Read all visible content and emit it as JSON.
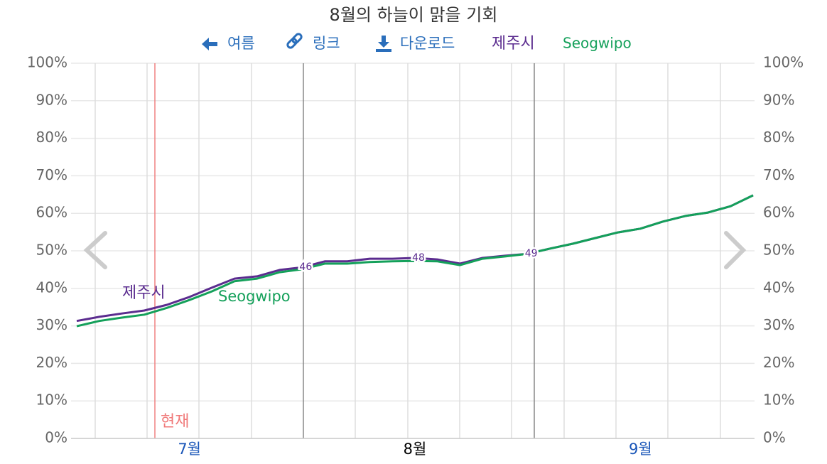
{
  "toolbar": [
    "여름",
    "링크",
    "다운로드"
  ],
  "chart_data": {
    "type": "line",
    "title": "8월의 하늘이 맑을 기회",
    "current_label": "현재",
    "categories": [
      null,
      null,
      null,
      null,
      null,
      "7월",
      null,
      null,
      null,
      null,
      null,
      null,
      null,
      null,
      null,
      "8월",
      null,
      null,
      null,
      null,
      null,
      null,
      null,
      null,
      null,
      "9월",
      null,
      null,
      null,
      null,
      null
    ],
    "series": [
      {
        "name": "제주시",
        "color": "#5b2c8f",
        "values": [
          31.3,
          32.4,
          33.3,
          34.1,
          35.6,
          37.7,
          40.2,
          42.6,
          43.2,
          44.9,
          45.6,
          47.2,
          47.2,
          47.9,
          47.9,
          48.1,
          47.7,
          46.6,
          48.1,
          48.7,
          49.2,
          50.6,
          51.9,
          53.4,
          54.9,
          55.9,
          57.8,
          59.3,
          60.2,
          61.9,
          64.8
        ],
        "value_labels": [
          null,
          null,
          null,
          null,
          null,
          null,
          null,
          null,
          null,
          null,
          "46",
          null,
          null,
          null,
          null,
          "48",
          null,
          null,
          null,
          null,
          "49",
          null,
          null,
          null,
          null,
          null,
          null,
          null,
          null,
          null,
          null
        ]
      },
      {
        "name": "Seogwipo",
        "color": "#14a05a",
        "values": [
          29.9,
          31.3,
          32.2,
          33.0,
          34.8,
          36.9,
          39.2,
          41.9,
          42.6,
          44.3,
          45.1,
          46.6,
          46.6,
          47.0,
          47.2,
          47.3,
          47.2,
          46.2,
          47.9,
          48.5,
          49.2,
          50.6,
          51.9,
          53.4,
          54.9,
          55.9,
          57.8,
          59.3,
          60.2,
          61.9,
          64.8
        ]
      }
    ],
    "ylim": [
      0,
      100
    ],
    "yticks": [
      {
        "value": 0,
        "label": "0%"
      },
      {
        "value": 10,
        "label": "10%"
      },
      {
        "value": 20,
        "label": "20%"
      },
      {
        "value": 30,
        "label": "30%"
      },
      {
        "value": 40,
        "label": "40%"
      },
      {
        "value": 50,
        "label": "50%"
      },
      {
        "value": 60,
        "label": "60%"
      },
      {
        "value": 70,
        "label": "70%"
      },
      {
        "value": 80,
        "label": "80%"
      },
      {
        "value": 90,
        "label": "90%"
      },
      {
        "value": 100,
        "label": "100%"
      }
    ],
    "grid": true
  }
}
